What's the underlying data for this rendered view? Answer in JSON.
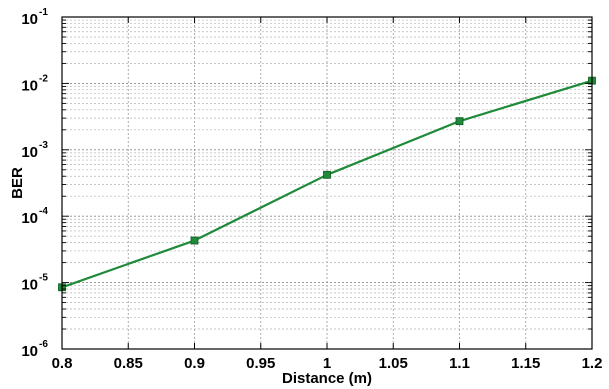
{
  "chart_data": {
    "type": "line",
    "title": "",
    "xlabel": "Distance (m)",
    "ylabel": "BER",
    "xlim": [
      0.8,
      1.2
    ],
    "ylim_log10": [
      -6,
      -1
    ],
    "yscale": "log",
    "grid": true,
    "legend": "none",
    "x_ticks": [
      "0.8",
      "0.85",
      "0.9",
      "0.95",
      "1",
      "1.05",
      "1.1",
      "1.15",
      "1.2"
    ],
    "y_ticks": [
      {
        "base": "10",
        "exp": "-1"
      },
      {
        "base": "10",
        "exp": "-2"
      },
      {
        "base": "10",
        "exp": "-3"
      },
      {
        "base": "10",
        "exp": "-4"
      },
      {
        "base": "10",
        "exp": "-5"
      },
      {
        "base": "10",
        "exp": "-6"
      }
    ],
    "series": [
      {
        "x": [
          0.8,
          0.9,
          1.0,
          1.1,
          1.2
        ],
        "y": [
          8.5e-06,
          4.3e-05,
          0.00042,
          0.0027,
          0.011
        ],
        "color": "#1f8a3a",
        "marker": "square"
      }
    ]
  }
}
